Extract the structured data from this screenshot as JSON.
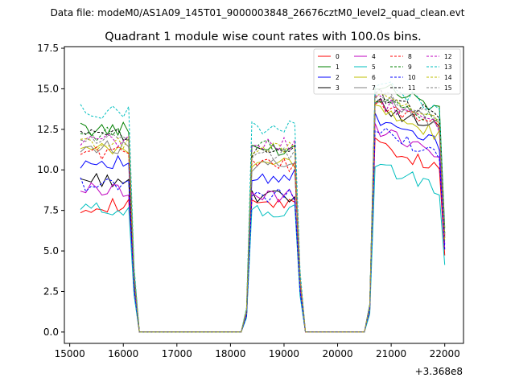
{
  "header": {
    "file_label": "Data file: modeM0/AS1A09_145T01_9000003848_26676cztM0_level2_quad_clean.evt"
  },
  "chart_data": {
    "type": "line",
    "title": "Quadrant 1 module wise count rates with 100.0s bins.",
    "xlabel": "",
    "ylabel": "",
    "x_offset_label": "+3.368e8",
    "xlim": [
      14900,
      22350
    ],
    "ylim": [
      -0.7,
      17.6
    ],
    "xticks": [
      15000,
      16000,
      17000,
      18000,
      19000,
      20000,
      21000,
      22000
    ],
    "xtick_labels": [
      "15000",
      "16000",
      "17000",
      "18000",
      "19000",
      "20000",
      "21000",
      "22000"
    ],
    "yticks": [
      0.0,
      2.5,
      5.0,
      7.5,
      10.0,
      12.5,
      15.0,
      17.5
    ],
    "ytick_labels": [
      "0.0",
      "2.5",
      "5.0",
      "7.5",
      "10.0",
      "12.5",
      "15.0",
      "17.5"
    ],
    "legend_position": "top-right",
    "segments": [
      {
        "start": 15200,
        "end": 16100
      },
      {
        "start": 18400,
        "end": 19200
      },
      {
        "start": 20700,
        "end": 21900
      }
    ],
    "series": [
      {
        "name": "0",
        "color": "#ff0000",
        "dashed": false,
        "levels": [
          7.8,
          7.9,
          10.5
        ]
      },
      {
        "name": "1",
        "color": "#008000",
        "dashed": false,
        "levels": [
          12.5,
          11.3,
          14.2
        ]
      },
      {
        "name": "2",
        "color": "#0000ff",
        "dashed": false,
        "levels": [
          10.5,
          9.6,
          12.0
        ]
      },
      {
        "name": "3",
        "color": "#000000",
        "dashed": false,
        "levels": [
          9.4,
          8.3,
          12.9
        ]
      },
      {
        "name": "4",
        "color": "#bf00bf",
        "dashed": false,
        "levels": [
          8.8,
          8.4,
          11.4
        ]
      },
      {
        "name": "5",
        "color": "#00bfbf",
        "dashed": false,
        "levels": [
          7.6,
          7.4,
          9.2
        ]
      },
      {
        "name": "6",
        "color": "#bfbf00",
        "dashed": false,
        "levels": [
          11.2,
          10.3,
          12.5
        ]
      },
      {
        "name": "7",
        "color": "#808080",
        "dashed": false,
        "levels": [
          11.4,
          10.2,
          13.3
        ]
      },
      {
        "name": "8",
        "color": "#ff0000",
        "dashed": true,
        "levels": [
          11.1,
          10.3,
          13.0
        ]
      },
      {
        "name": "9",
        "color": "#008000",
        "dashed": true,
        "levels": [
          12.2,
          11.5,
          13.3
        ]
      },
      {
        "name": "10",
        "color": "#0000ff",
        "dashed": true,
        "levels": [
          9.1,
          8.4,
          11.3
        ]
      },
      {
        "name": "11",
        "color": "#000000",
        "dashed": true,
        "levels": [
          12.1,
          11.2,
          13.6
        ]
      },
      {
        "name": "12",
        "color": "#bf00bf",
        "dashed": true,
        "levels": [
          11.8,
          11.6,
          13.1
        ]
      },
      {
        "name": "13",
        "color": "#00bfbf",
        "dashed": true,
        "levels": [
          13.6,
          12.6,
          14.2
        ]
      },
      {
        "name": "14",
        "color": "#bfbf00",
        "dashed": true,
        "levels": [
          11.6,
          11.4,
          13.4
        ]
      },
      {
        "name": "15",
        "color": "#808080",
        "dashed": true,
        "levels": [
          11.9,
          11.0,
          13.5
        ]
      }
    ]
  }
}
